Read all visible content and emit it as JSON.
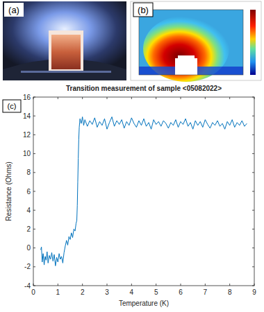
{
  "panel_labels": [
    "(a)",
    "(b)",
    "(c)"
  ],
  "chart_data": {
    "type": "line",
    "title": "Transition measurement of sample <05082022>",
    "x_label": "Temperature (K)",
    "y_label": "Resistance (Ohms)",
    "x": [
      0.3,
      0.33,
      0.36,
      0.4,
      0.44,
      0.48,
      0.52,
      0.56,
      0.6,
      0.65,
      0.7,
      0.75,
      0.8,
      0.85,
      0.9,
      0.95,
      1.0,
      1.05,
      1.1,
      1.15,
      1.2,
      1.25,
      1.3,
      1.35,
      1.4,
      1.45,
      1.5,
      1.55,
      1.6,
      1.65,
      1.7,
      1.74,
      1.77,
      1.79,
      1.81,
      1.83,
      1.85,
      1.87,
      1.9,
      1.95,
      2.0,
      2.05,
      2.1,
      2.2,
      2.3,
      2.4,
      2.5,
      2.6,
      2.7,
      2.8,
      2.9,
      3.0,
      3.1,
      3.2,
      3.3,
      3.4,
      3.5,
      3.6,
      3.7,
      3.8,
      3.9,
      4.0,
      4.1,
      4.2,
      4.3,
      4.4,
      4.5,
      4.6,
      4.7,
      4.8,
      4.9,
      5.0,
      5.1,
      5.2,
      5.3,
      5.4,
      5.5,
      5.6,
      5.7,
      5.8,
      5.9,
      6.0,
      6.1,
      6.2,
      6.3,
      6.4,
      6.5,
      6.6,
      6.7,
      6.8,
      6.9,
      7.0,
      7.1,
      7.2,
      7.3,
      7.4,
      7.5,
      7.6,
      7.7,
      7.8,
      7.9,
      8.0,
      8.1,
      8.2,
      8.3,
      8.4,
      8.5,
      8.6,
      8.7
    ],
    "values": [
      -0.2,
      0.1,
      -1.5,
      -0.6,
      -1.8,
      -0.9,
      -1.3,
      -0.4,
      -1.6,
      -0.8,
      -1.2,
      -0.5,
      -1.4,
      -0.7,
      -1.9,
      -1.0,
      -1.5,
      -0.6,
      -1.2,
      -0.9,
      -1.6,
      -0.5,
      0.2,
      0.8,
      0.3,
      1.2,
      0.9,
      1.6,
      1.1,
      2.0,
      1.8,
      2.6,
      2.9,
      4.5,
      7.0,
      9.5,
      11.5,
      12.8,
      13.7,
      13.2,
      13.9,
      13.0,
      13.6,
      12.9,
      13.5,
      13.1,
      13.8,
      12.8,
      13.4,
      13.0,
      13.7,
      12.6,
      13.3,
      13.9,
      12.9,
      13.5,
      13.1,
      13.6,
      12.7,
      13.4,
      13.0,
      13.8,
      13.2,
      12.8,
      13.5,
      13.0,
      13.7,
      12.9,
      13.3,
      12.6,
      13.6,
      13.1,
      13.4,
      12.9,
      13.5,
      13.2,
      12.7,
      13.3,
      13.0,
      13.6,
      12.8,
      13.4,
      13.1,
      13.7,
      12.9,
      13.3,
      12.6,
      13.5,
      13.0,
      13.4,
      12.8,
      13.6,
      13.1,
      12.7,
      13.3,
      13.0,
      13.5,
      12.9,
      13.2,
      12.6,
      13.4,
      13.0,
      13.6,
      12.8,
      13.3,
      13.0,
      13.5,
      12.9,
      13.2
    ],
    "color": "#0072bd",
    "xlim": [
      0,
      9
    ],
    "ylim": [
      -4,
      16
    ],
    "xticks": [
      0,
      1,
      2,
      3,
      4,
      5,
      6,
      7,
      8,
      9
    ],
    "yticks": [
      -4,
      -2,
      0,
      2,
      4,
      6,
      8,
      10,
      12,
      14,
      16
    ],
    "grid": false
  }
}
